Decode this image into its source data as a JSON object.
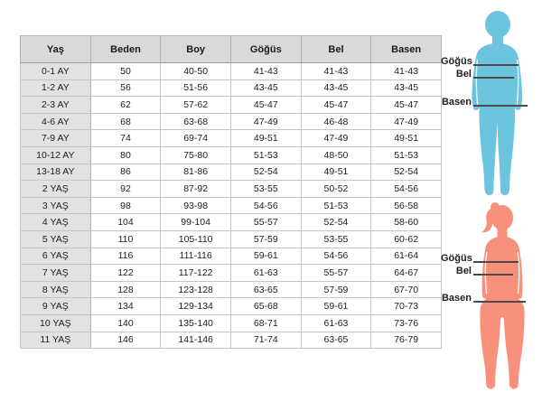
{
  "chart_data": {
    "type": "table",
    "title": "",
    "columns": [
      "Yaş",
      "Beden",
      "Boy",
      "Göğüs",
      "Bel",
      "Basen"
    ],
    "rows": [
      [
        "0-1 AY",
        "50",
        "40-50",
        "41-43",
        "41-43",
        "41-43"
      ],
      [
        "1-2 AY",
        "56",
        "51-56",
        "43-45",
        "43-45",
        "43-45"
      ],
      [
        "2-3 AY",
        "62",
        "57-62",
        "45-47",
        "45-47",
        "45-47"
      ],
      [
        "4-6 AY",
        "68",
        "63-68",
        "47-49",
        "46-48",
        "47-49"
      ],
      [
        "7-9 AY",
        "74",
        "69-74",
        "49-51",
        "47-49",
        "49-51"
      ],
      [
        "10-12 AY",
        "80",
        "75-80",
        "51-53",
        "48-50",
        "51-53"
      ],
      [
        "13-18 AY",
        "86",
        "81-86",
        "52-54",
        "49-51",
        "52-54"
      ],
      [
        "2 YAŞ",
        "92",
        "87-92",
        "53-55",
        "50-52",
        "54-56"
      ],
      [
        "3 YAŞ",
        "98",
        "93-98",
        "54-56",
        "51-53",
        "56-58"
      ],
      [
        "4 YAŞ",
        "104",
        "99-104",
        "55-57",
        "52-54",
        "58-60"
      ],
      [
        "5 YAŞ",
        "110",
        "105-110",
        "57-59",
        "53-55",
        "60-62"
      ],
      [
        "6 YAŞ",
        "116",
        "111-116",
        "59-61",
        "54-56",
        "61-64"
      ],
      [
        "7 YAŞ",
        "122",
        "117-122",
        "61-63",
        "55-57",
        "64-67"
      ],
      [
        "8 YAŞ",
        "128",
        "123-128",
        "63-65",
        "57-59",
        "67-70"
      ],
      [
        "9 YAŞ",
        "134",
        "129-134",
        "65-68",
        "59-61",
        "70-73"
      ],
      [
        "10 YAŞ",
        "140",
        "135-140",
        "68-71",
        "61-63",
        "73-76"
      ],
      [
        "11 YAŞ",
        "146",
        "141-146",
        "71-74",
        "63-65",
        "76-79"
      ]
    ],
    "layout_hints": {
      "header_row": true,
      "shaded_first_column": true,
      "grid": true
    }
  },
  "figures": {
    "boy": {
      "color": "#6cc4df",
      "measure_labels": [
        "Göğüs",
        "Bel",
        "Basen"
      ]
    },
    "girl": {
      "color": "#f8907b",
      "measure_labels": [
        "Göğüs",
        "Bel",
        "Basen"
      ]
    }
  },
  "colors": {
    "header_bg": "#d9d9d9",
    "first_column_bg": "#e2e2e2",
    "grid_border": "#c6c6c6",
    "measure_line": "#4a4a4a",
    "boy_silhouette": "#6cc4df",
    "girl_silhouette": "#f8907b"
  }
}
